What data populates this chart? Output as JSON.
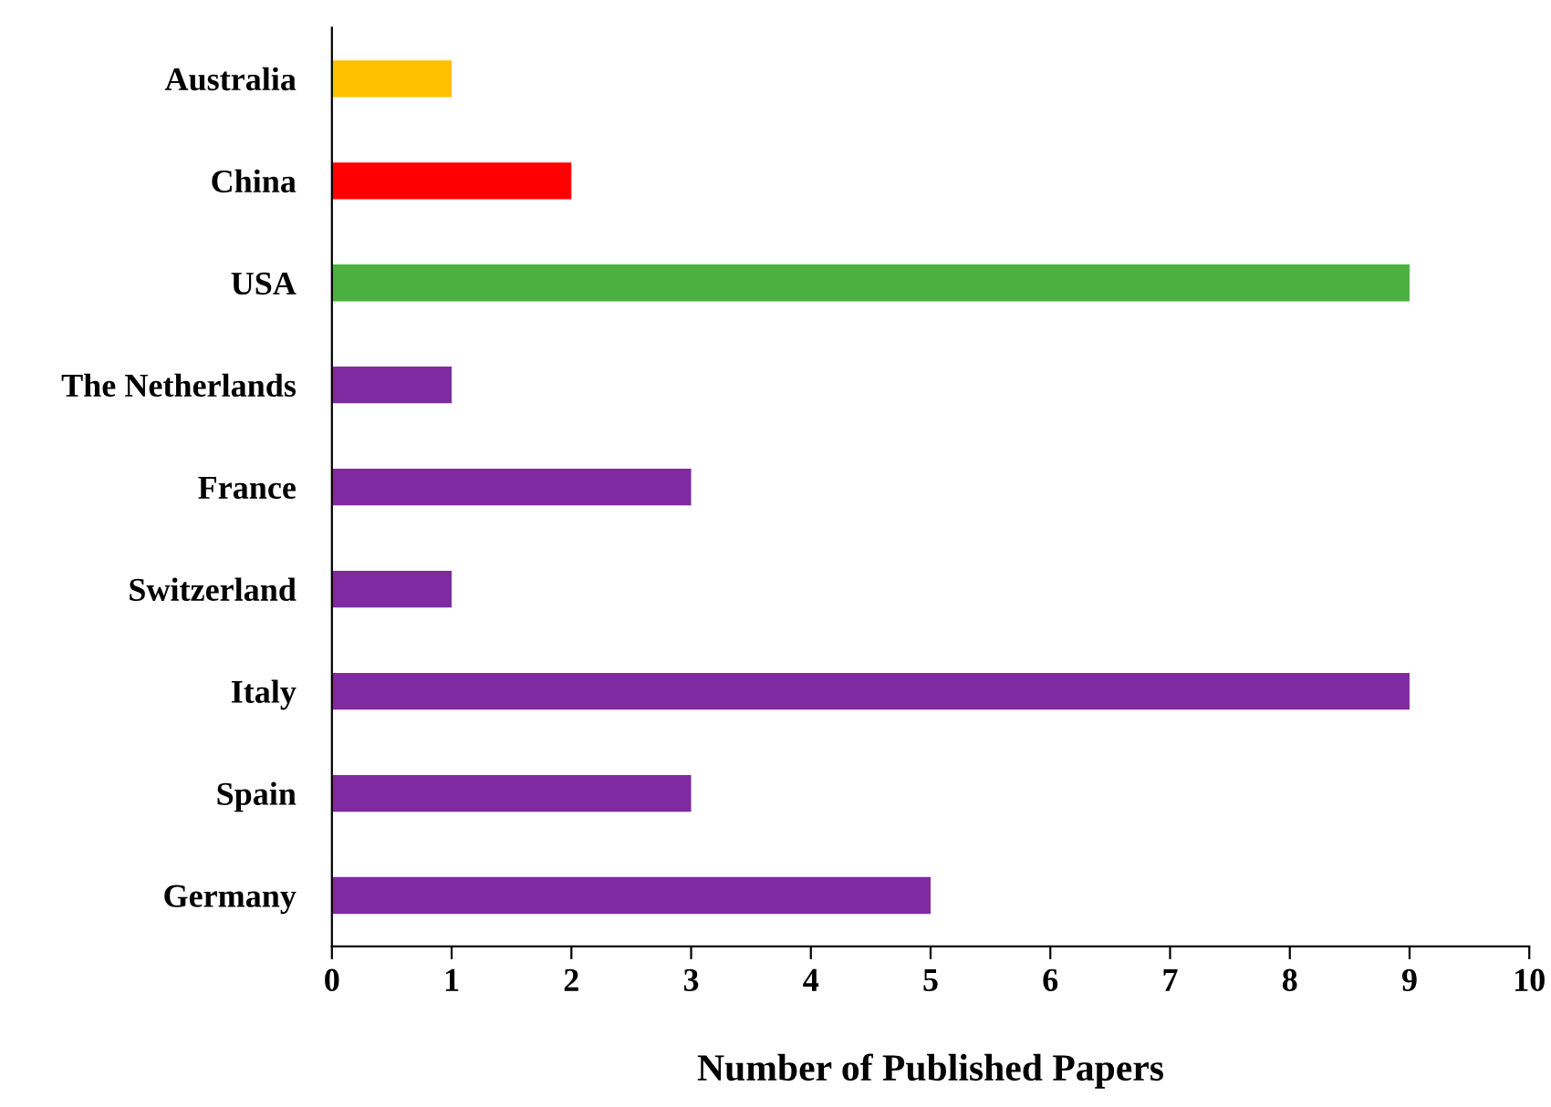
{
  "chart_data": {
    "type": "bar",
    "orientation": "horizontal",
    "categories": [
      "Australia",
      "China",
      "USA",
      "The Netherlands",
      "France",
      "Switzerland",
      "Italy",
      "Spain",
      "Germany"
    ],
    "values": [
      1,
      2,
      9,
      1,
      3,
      1,
      9,
      3,
      5
    ],
    "colors": [
      "#ffc000",
      "#ff0000",
      "#4cb040",
      "#7f2aa0",
      "#7f2aa0",
      "#7f2aa0",
      "#7f2aa0",
      "#7f2aa0",
      "#7f2aa0"
    ],
    "xlabel": "Number of Published Papers",
    "xlim": [
      0,
      10
    ],
    "xticks": [
      0,
      1,
      2,
      3,
      4,
      5,
      6,
      7,
      8,
      9,
      10
    ],
    "grid": false,
    "legend": false
  }
}
